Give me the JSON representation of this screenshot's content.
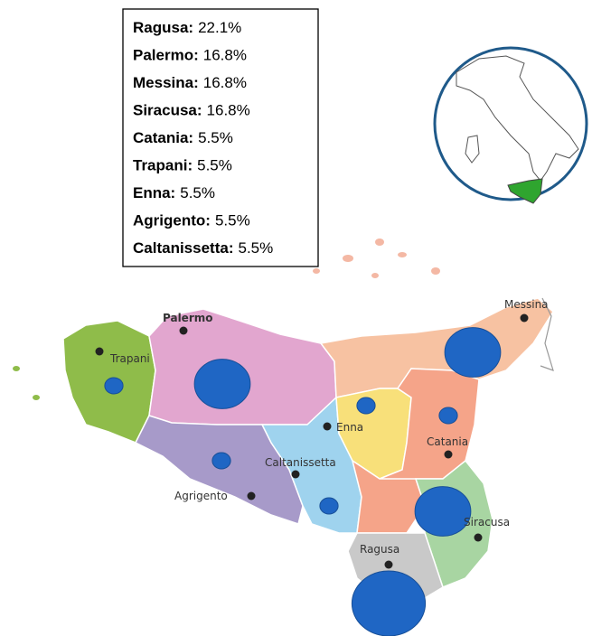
{
  "legend": {
    "items": [
      {
        "label": "Ragusa:",
        "value": 22.1,
        "value_label": "22.1%"
      },
      {
        "label": "Palermo:",
        "value": 16.8,
        "value_label": "16.8%"
      },
      {
        "label": "Messina:",
        "value": 16.8,
        "value_label": "16.8%"
      },
      {
        "label": "Siracusa:",
        "value": 16.8,
        "value_label": "16.8%"
      },
      {
        "label": "Catania:",
        "value": 5.5,
        "value_label": "5.5%"
      },
      {
        "label": "Trapani:",
        "value": 5.5,
        "value_label": "5.5%"
      },
      {
        "label": "Enna:",
        "value": 5.5,
        "value_label": "5.5%"
      },
      {
        "label": "Agrigento:",
        "value": 5.5,
        "value_label": "5.5%"
      },
      {
        "label": "Caltanissetta:",
        "value": 5.5,
        "value_label": "5.5%"
      }
    ]
  },
  "cities": [
    "Ragusa",
    "Palermo",
    "Messina",
    "Siracusa",
    "Catania",
    "Trapani",
    "Enna",
    "Agrigento",
    "Caltanissetta"
  ]
}
